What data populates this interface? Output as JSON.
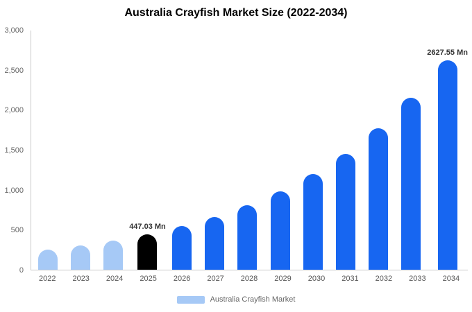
{
  "title": "Australia Crayfish Market Size (2022-2034)",
  "legend": {
    "label": "Australia Crayfish Market",
    "swatch_color": "#a6c9f6"
  },
  "colors": {
    "historical": "#a6c9f6",
    "base_year": "#000000",
    "forecast": "#1766f1",
    "axis": "#c9c9c9",
    "annotation_text": "#333333"
  },
  "chart_data": {
    "type": "bar",
    "title": "Australia Crayfish Market Size (2022-2034)",
    "xlabel": "",
    "ylabel": "",
    "unit": "Mn",
    "categories": [
      "2022",
      "2023",
      "2024",
      "2025",
      "2026",
      "2027",
      "2028",
      "2029",
      "2030",
      "2031",
      "2032",
      "2033",
      "2034"
    ],
    "values": [
      248,
      302,
      367,
      447.03,
      544,
      663,
      807,
      982,
      1196,
      1456,
      1773,
      2158,
      2627.55
    ],
    "bar_colors": [
      "#a6c9f6",
      "#a6c9f6",
      "#a6c9f6",
      "#000000",
      "#1766f1",
      "#1766f1",
      "#1766f1",
      "#1766f1",
      "#1766f1",
      "#1766f1",
      "#1766f1",
      "#1766f1",
      "#1766f1"
    ],
    "annotations": [
      {
        "category": "2025",
        "text": "447.03 Mn"
      },
      {
        "category": "2034",
        "text": "2627.55 Mn"
      }
    ],
    "ylim": [
      0,
      3000
    ],
    "yticks": [
      "0",
      "500",
      "1,000",
      "1,500",
      "2,000",
      "2,500",
      "3,000"
    ],
    "grid": false,
    "legend_position": "bottom"
  }
}
